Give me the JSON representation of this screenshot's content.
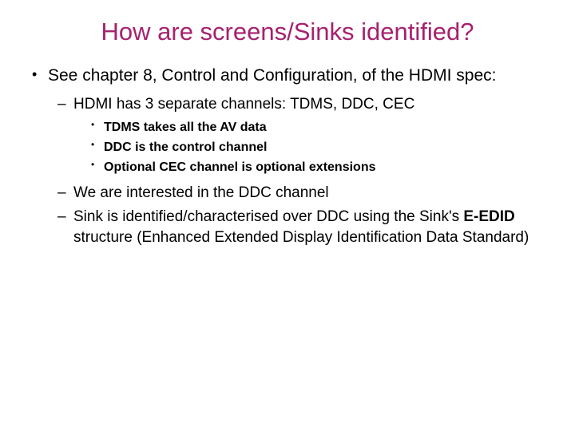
{
  "colors": {
    "title": "#a6216f",
    "body": "#000000",
    "background": "#ffffff"
  },
  "typography": {
    "title_fontsize": 31,
    "l1_fontsize": 21,
    "l2_fontsize": 19,
    "l3_fontsize": 16,
    "font_family": "Arial"
  },
  "title": "How are screens/Sinks identified?",
  "bullets": {
    "l1_a": "See chapter 8, Control and Configuration, of the HDMI spec:",
    "l2_a": "HDMI has 3 separate channels: TDMS, DDC, CEC",
    "l3_a": "TDMS takes all the AV data",
    "l3_b": "DDC is the control channel",
    "l3_c": "Optional CEC channel is optional extensions",
    "l2_b": "We are interested in the DDC channel",
    "l2_c_pre": "Sink is identified/characterised over DDC using the Sink's ",
    "l2_c_bold": "E-EDID",
    "l2_c_post": " structure (Enhanced Extended Display Identification Data Standard)"
  }
}
